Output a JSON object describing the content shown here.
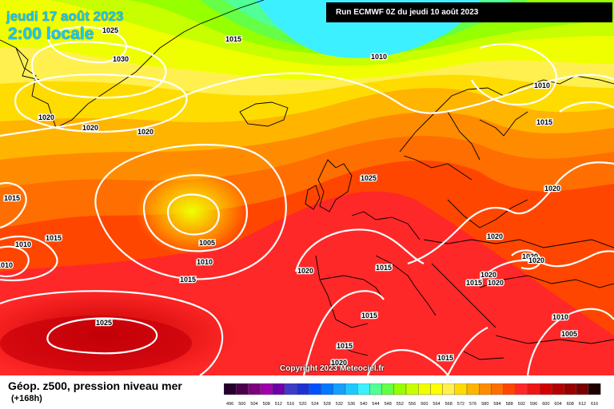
{
  "header": {
    "date": "jeudi 17 août 2023",
    "time": "2:00 locale",
    "run": "Run ECMWF 0Z du jeudi 10 août 2023"
  },
  "footer": {
    "copyright": "Copyright 2023 Meteociel.fr",
    "legend_title": "Géop. z500, pression niveau mer",
    "legend_subtitle": "(+168h)"
  },
  "colors": {
    "white_isobar": "#ffffff",
    "coastline": "#000000",
    "warm_core": "#c8000a",
    "cold_core": "#40ffff"
  },
  "color_scale": {
    "ticks": [
      "496",
      "500",
      "504",
      "508",
      "512",
      "516",
      "520",
      "524",
      "528",
      "532",
      "536",
      "540",
      "544",
      "548",
      "552",
      "556",
      "560",
      "564",
      "568",
      "572",
      "576",
      "580",
      "584",
      "588",
      "592",
      "596",
      "600",
      "604",
      "608",
      "612",
      "616"
    ],
    "colors": [
      "#25002d",
      "#4b004b",
      "#7d007d",
      "#a000aa",
      "#6e00aa",
      "#3c3cc8",
      "#1e32d2",
      "#0050ff",
      "#0078ff",
      "#14a0ff",
      "#1ec8ff",
      "#3cf0ff",
      "#50ff96",
      "#64ff46",
      "#96ff00",
      "#c8ff00",
      "#f0ff00",
      "#ffff00",
      "#fff050",
      "#ffdc00",
      "#ffb400",
      "#ff8c00",
      "#ff6e00",
      "#ff4600",
      "#ff2828",
      "#f01414",
      "#d20000",
      "#b40000",
      "#960000",
      "#780000",
      "#1e0000"
    ]
  },
  "isobar_labels": [
    "1025",
    "1015",
    "1010",
    "1030",
    "1020",
    "1020",
    "1020",
    "1010",
    "1015",
    "1025",
    "1005",
    "1010",
    "1015",
    "1020",
    "1015",
    "1010",
    "1015",
    "1025",
    "1020",
    "1010",
    "1015",
    "1020",
    "1020",
    "1020",
    "1020",
    "1015",
    "1020",
    "1015",
    "1015",
    "1020",
    "1010",
    "1005",
    "1015"
  ]
}
